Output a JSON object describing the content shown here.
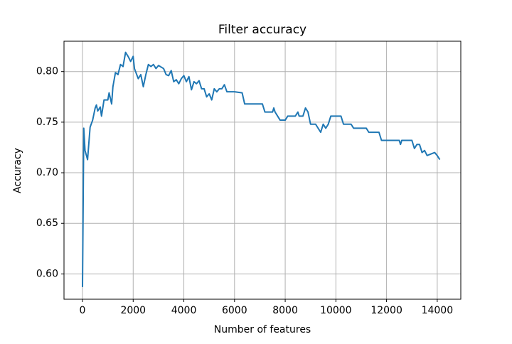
{
  "chart_data": {
    "type": "line",
    "title": "Filter accuracy",
    "x_label": "Number of features",
    "y_label": "Accuracy",
    "x": [
      0,
      50,
      100,
      200,
      300,
      400,
      500,
      550,
      600,
      700,
      750,
      850,
      1000,
      1050,
      1150,
      1200,
      1300,
      1400,
      1500,
      1600,
      1700,
      1800,
      1900,
      2000,
      2050,
      2200,
      2300,
      2400,
      2500,
      2600,
      2700,
      2800,
      2900,
      3000,
      3200,
      3300,
      3400,
      3500,
      3600,
      3700,
      3800,
      3900,
      4000,
      4100,
      4200,
      4300,
      4400,
      4500,
      4600,
      4700,
      4800,
      4900,
      5000,
      5100,
      5200,
      5300,
      5400,
      5500,
      5600,
      5700,
      6000,
      6300,
      6400,
      7100,
      7200,
      7500,
      7550,
      7600,
      7800,
      8000,
      8100,
      8400,
      8500,
      8550,
      8700,
      8800,
      8900,
      9000,
      9200,
      9400,
      9500,
      9600,
      9700,
      9800,
      10200,
      10300,
      10600,
      10700,
      11200,
      11300,
      11700,
      11800,
      12500,
      12550,
      12600,
      13000,
      13100,
      13200,
      13300,
      13400,
      13500,
      13600,
      13900,
      14000,
      14100
    ],
    "series": [
      {
        "name": "accuracy",
        "color": "#1f77b4",
        "values": [
          0.587,
          0.744,
          0.722,
          0.713,
          0.745,
          0.752,
          0.764,
          0.767,
          0.761,
          0.765,
          0.756,
          0.772,
          0.772,
          0.779,
          0.768,
          0.785,
          0.799,
          0.797,
          0.807,
          0.805,
          0.819,
          0.815,
          0.81,
          0.815,
          0.803,
          0.793,
          0.797,
          0.785,
          0.797,
          0.807,
          0.805,
          0.807,
          0.803,
          0.806,
          0.803,
          0.797,
          0.796,
          0.801,
          0.79,
          0.792,
          0.788,
          0.793,
          0.796,
          0.79,
          0.795,
          0.782,
          0.79,
          0.788,
          0.791,
          0.783,
          0.783,
          0.775,
          0.778,
          0.772,
          0.783,
          0.78,
          0.783,
          0.783,
          0.787,
          0.78,
          0.78,
          0.779,
          0.768,
          0.768,
          0.76,
          0.76,
          0.764,
          0.76,
          0.752,
          0.752,
          0.756,
          0.756,
          0.76,
          0.756,
          0.756,
          0.764,
          0.76,
          0.748,
          0.748,
          0.74,
          0.748,
          0.744,
          0.748,
          0.756,
          0.756,
          0.748,
          0.748,
          0.744,
          0.744,
          0.74,
          0.74,
          0.732,
          0.732,
          0.728,
          0.732,
          0.732,
          0.724,
          0.728,
          0.728,
          0.72,
          0.722,
          0.717,
          0.72,
          0.717,
          0.713
        ]
      }
    ],
    "xlim": [
      -730,
      14930
    ],
    "ylim": [
      0.575,
      0.83
    ],
    "xticks": [
      0,
      2000,
      4000,
      6000,
      8000,
      10000,
      12000,
      14000
    ],
    "yticks": [
      {
        "value": 0.6,
        "label": "0.60"
      },
      {
        "value": 0.65,
        "label": "0.65"
      },
      {
        "value": 0.7,
        "label": "0.70"
      },
      {
        "value": 0.75,
        "label": "0.75"
      },
      {
        "value": 0.8,
        "label": "0.80"
      }
    ],
    "grid": true
  }
}
